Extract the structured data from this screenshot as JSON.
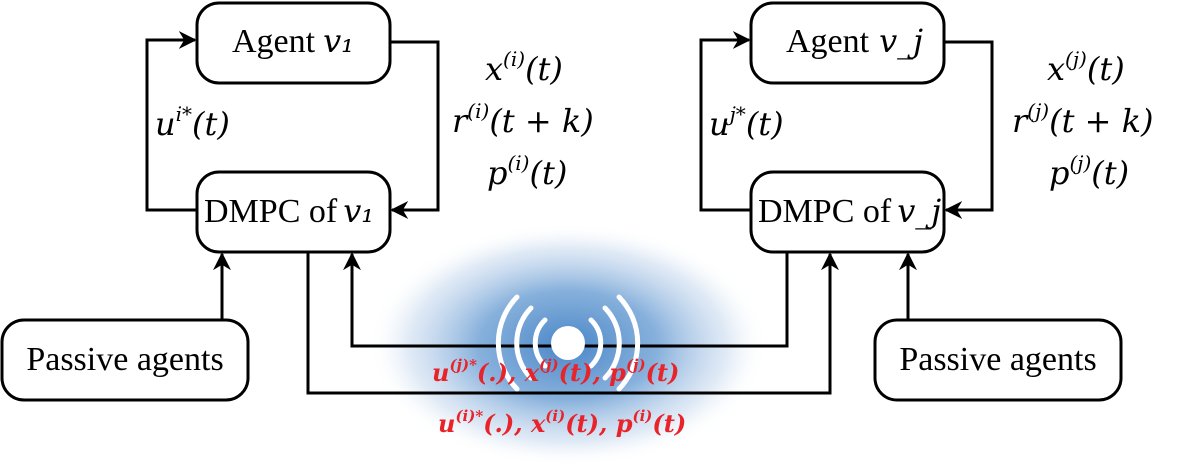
{
  "left_loop": {
    "agent_label": "Agent",
    "agent_var": "v₁",
    "dmpc_label": "DMPC of",
    "dmpc_var": "v₁",
    "control": "u^{i*}(t)",
    "state": "x^{(i)}(t)",
    "reference": "r^{(i)}(t + k)",
    "param": "p^{(i)}(t)",
    "passive_label": "Passive agents"
  },
  "right_loop": {
    "agent_label": "Agent",
    "agent_var": "v_j",
    "dmpc_label": "DMPC of",
    "dmpc_var": "v_j",
    "control": "u^{j*}(t)",
    "state": "x^{(j)}(t)",
    "reference": "r^{(j)}(t + k)",
    "param": "p^{(j)}(t)",
    "passive_label": "Passive agents"
  },
  "messages": {
    "from_j": "u^{(j)*}(.), x^{(j)}(t), p^{(j)}(t)",
    "from_i": "u^{(i)*}(.), x^{(i)}(t), p^{(i)}(t)"
  },
  "colors": {
    "message_text": "#e8232a",
    "wireless_glow": "#5b93cf",
    "line": "#000000"
  },
  "icons": {
    "wireless": "wireless-broadcast-icon"
  }
}
